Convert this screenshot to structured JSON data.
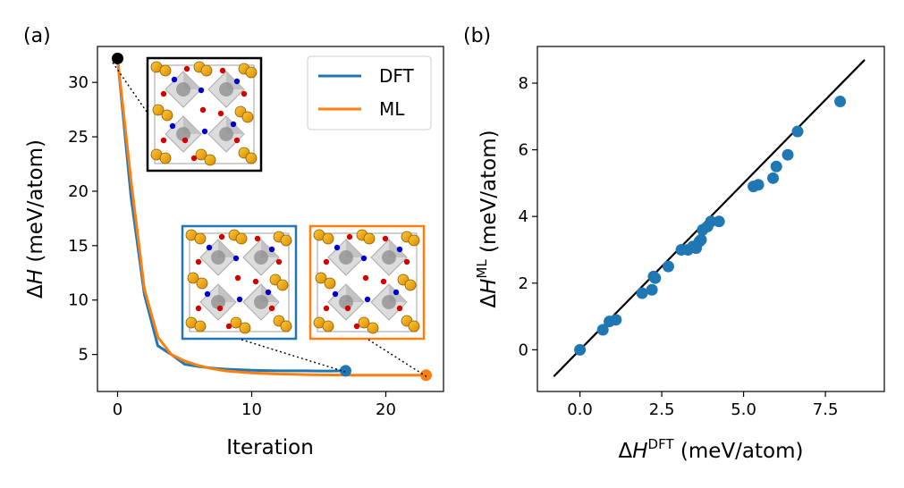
{
  "chart_data": [
    {
      "panel_label": "(a)",
      "type": "line",
      "xlabel": "Iteration",
      "ylabel_prefix": "Δ",
      "ylabel_var": "H",
      "ylabel_unit": " (meV/atom)",
      "xlim": [
        -1.5,
        24.3
      ],
      "ylim": [
        1.6,
        33.3
      ],
      "xticks": [
        0,
        10,
        20
      ],
      "yticks": [
        5,
        10,
        15,
        20,
        25,
        30
      ],
      "series": [
        {
          "name": "DFT",
          "color": "#1f77b4",
          "x": [
            0,
            1,
            2,
            3,
            4,
            5,
            6,
            7,
            8,
            9,
            10,
            11,
            12,
            13,
            14,
            15,
            16,
            17
          ],
          "y": [
            32.2,
            19.5,
            10.5,
            5.8,
            5.0,
            4.1,
            3.9,
            3.75,
            3.65,
            3.6,
            3.55,
            3.52,
            3.5,
            3.5,
            3.5,
            3.48,
            3.48,
            3.5
          ]
        },
        {
          "name": "ML",
          "color": "#ff7f0e",
          "x": [
            0,
            1,
            2,
            3,
            4,
            5,
            6,
            7,
            8,
            9,
            10,
            11,
            12,
            13,
            14,
            15,
            16,
            17,
            18,
            19,
            20,
            21,
            22,
            23
          ],
          "y": [
            32.2,
            21.0,
            11.0,
            6.6,
            5.0,
            4.4,
            4.0,
            3.7,
            3.5,
            3.4,
            3.3,
            3.25,
            3.2,
            3.18,
            3.15,
            3.13,
            3.12,
            3.1,
            3.1,
            3.1,
            3.1,
            3.1,
            3.1,
            3.1
          ]
        }
      ],
      "markers": [
        {
          "name": "start",
          "x": 0,
          "y": 32.2,
          "color": "#000000"
        },
        {
          "name": "dft-final",
          "x": 17,
          "y": 3.5,
          "color": "#1f77b4"
        },
        {
          "name": "ml-final",
          "x": 23,
          "y": 3.1,
          "color": "#ff7f0e"
        }
      ],
      "legend": {
        "position": "top-right",
        "entries": [
          "DFT",
          "ML"
        ]
      },
      "insets": [
        {
          "name": "initial-structure",
          "frame_color": "#000000"
        },
        {
          "name": "dft-final-structure",
          "frame_color": "#1f77b4"
        },
        {
          "name": "ml-final-structure",
          "frame_color": "#ff7f0e"
        }
      ]
    },
    {
      "panel_label": "(b)",
      "type": "scatter",
      "xlabel_prefix": "Δ",
      "xlabel_var": "H",
      "xlabel_sup": "DFT",
      "xlabel_unit": " (meV/atom)",
      "ylabel_prefix": "Δ",
      "ylabel_var": "H",
      "ylabel_sup": "ML",
      "ylabel_unit": " (meV/atom)",
      "xlim": [
        -1.3,
        9.3
      ],
      "ylim": [
        -1.25,
        9.1
      ],
      "xticks": [
        0.0,
        2.5,
        5.0,
        7.5
      ],
      "xtick_labels": [
        "0.0",
        "2.5",
        "5.0",
        "7.5"
      ],
      "yticks": [
        0,
        2,
        4,
        6,
        8
      ],
      "color": "#1f77b4",
      "points": {
        "x": [
          0.0,
          0.7,
          0.9,
          1.1,
          1.9,
          2.2,
          2.25,
          2.3,
          2.7,
          3.1,
          3.3,
          3.45,
          3.55,
          3.65,
          3.7,
          3.75,
          3.9,
          4.0,
          4.25,
          5.3,
          5.45,
          5.9,
          6.0,
          6.35,
          6.65,
          7.95
        ],
        "y": [
          0.0,
          0.6,
          0.85,
          0.9,
          1.7,
          1.8,
          2.2,
          2.15,
          2.5,
          3.0,
          3.0,
          3.1,
          3.05,
          3.25,
          3.3,
          3.6,
          3.7,
          3.85,
          3.85,
          4.9,
          4.95,
          5.15,
          5.5,
          5.85,
          6.55,
          7.45
        ]
      },
      "reference_line": {
        "name": "y=x",
        "x": [
          -0.8,
          8.7
        ],
        "y": [
          -0.8,
          8.7
        ],
        "color": "#000000"
      }
    }
  ]
}
